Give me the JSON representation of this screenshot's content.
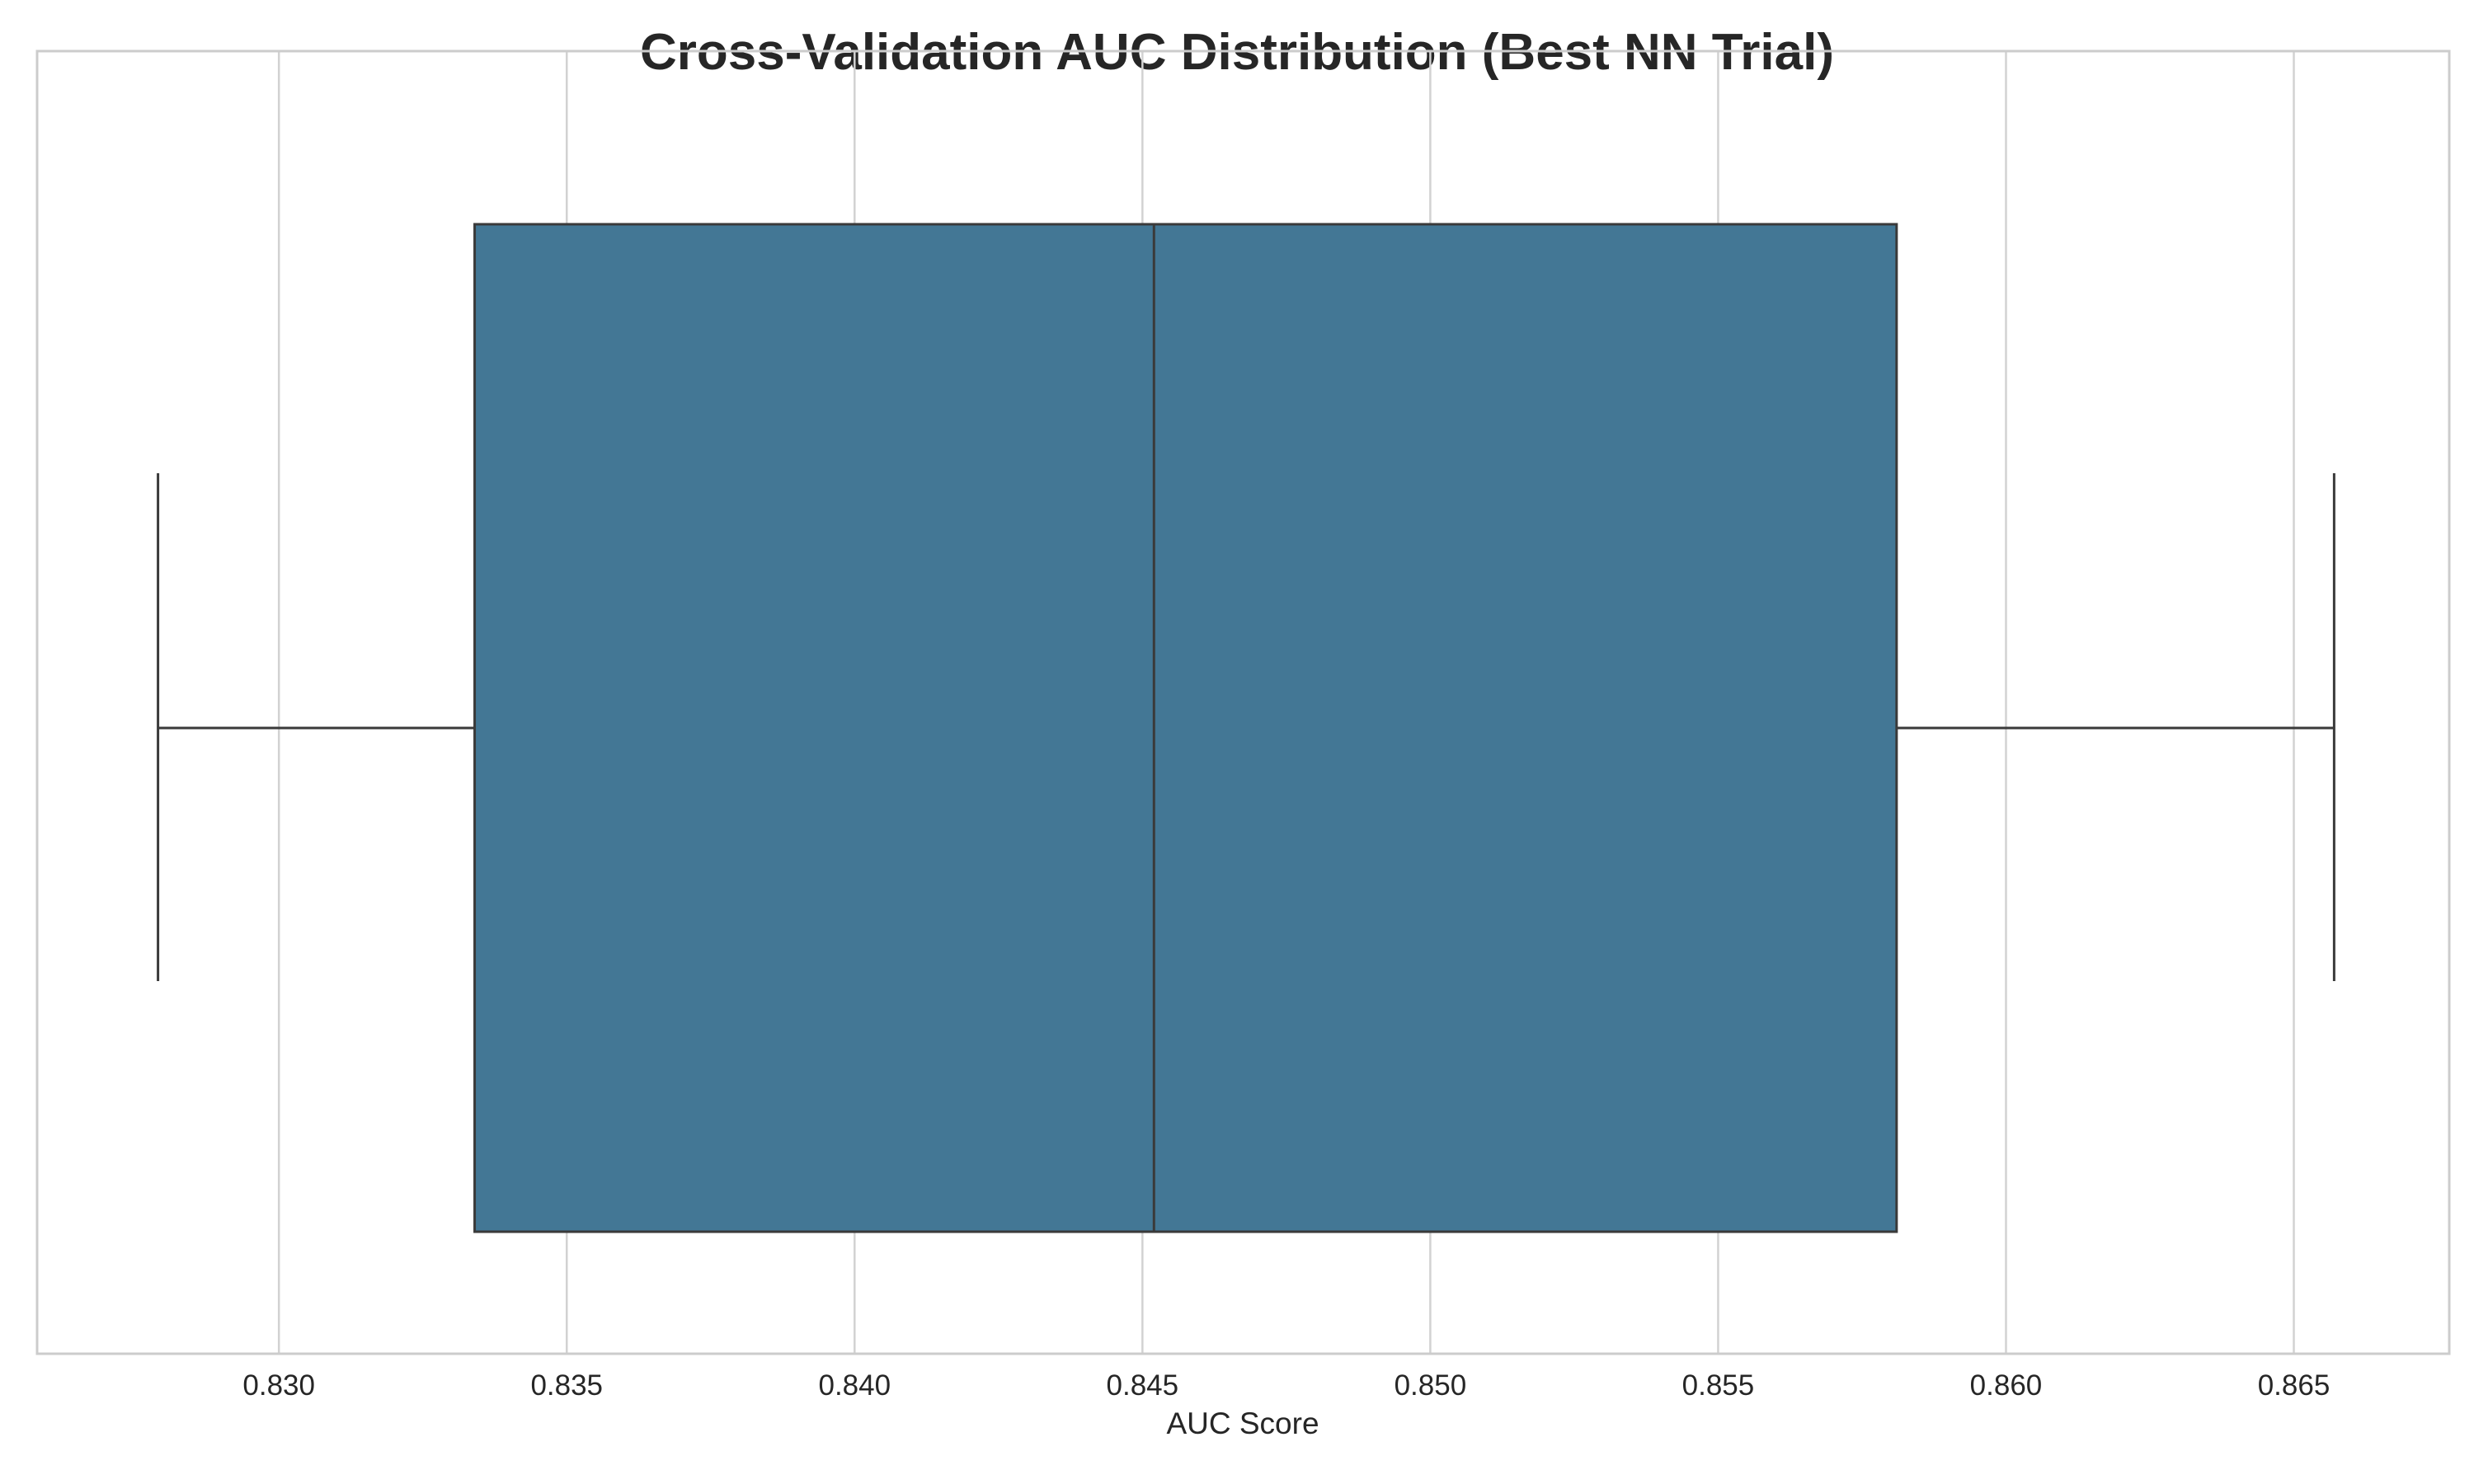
{
  "chart_data": {
    "type": "boxplot",
    "orientation": "horizontal",
    "title": "Cross-Validation AUC Distribution (Best NN Trial)",
    "xlabel": "AUC Score",
    "ylabel": "",
    "xlim": [
      0.8258,
      0.8677
    ],
    "xticks": [
      0.83,
      0.835,
      0.84,
      0.845,
      0.85,
      0.855,
      0.86,
      0.865
    ],
    "xtick_labels": [
      "0.830",
      "0.835",
      "0.840",
      "0.845",
      "0.850",
      "0.855",
      "0.860",
      "0.865"
    ],
    "grid": true,
    "series": [
      {
        "name": "AUC",
        "whisker_low": 0.8279,
        "q1": 0.8334,
        "median": 0.8452,
        "q3": 0.8581,
        "whisker_high": 0.8657
      }
    ],
    "colors": {
      "box_fill": "#437795",
      "line": "#3a3a3a",
      "grid": "#d2d2d2",
      "frame": "#cccccc",
      "text": "#262626"
    }
  }
}
